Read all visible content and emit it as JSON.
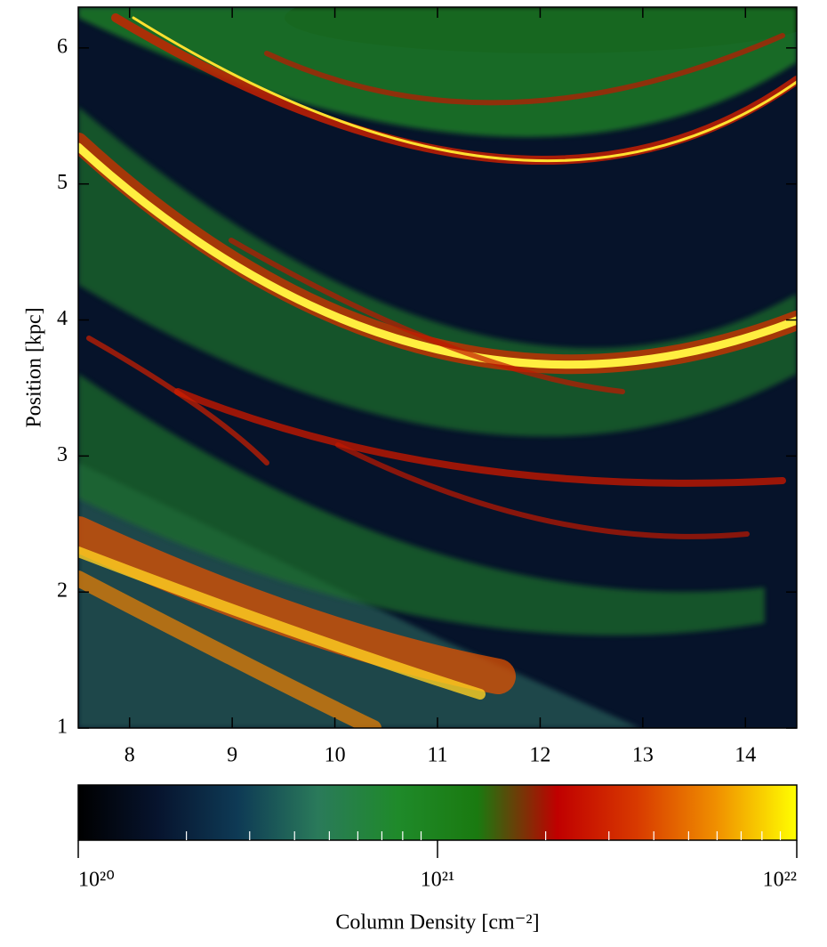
{
  "chart_data": {
    "type": "image",
    "ylabel": "Position [kpc]",
    "xlim": [
      7.5,
      14.5
    ],
    "xticks": [
      8,
      9,
      10,
      11,
      12,
      13,
      14
    ],
    "ylim": [
      1,
      6.3
    ],
    "yticks": [
      1,
      2,
      3,
      4,
      5,
      6
    ],
    "colorbar": {
      "label": "Column Density [cm⁻²]",
      "log": true,
      "lim": [
        1e+20,
        1e+22
      ],
      "ticks": [
        {
          "value": 1e+20,
          "label": "10²⁰"
        },
        {
          "value": 1e+21,
          "label": "10²¹"
        },
        {
          "value": 1e+22,
          "label": "10²²"
        }
      ],
      "minor_ticks": [
        2e+20,
        3e+20,
        4e+20,
        5e+20,
        6e+20,
        7e+20,
        8e+20,
        9e+20,
        2e+21,
        3e+21,
        4e+21,
        5e+21,
        6e+21,
        7e+21,
        8e+21,
        9e+21
      ],
      "colormap": [
        "#000000",
        "#07142e",
        "#0e3a55",
        "#2a7a5a",
        "#1f8a2a",
        "#1a7a10",
        "#c00000",
        "#d83a00",
        "#f09000",
        "#ffff00"
      ]
    }
  }
}
